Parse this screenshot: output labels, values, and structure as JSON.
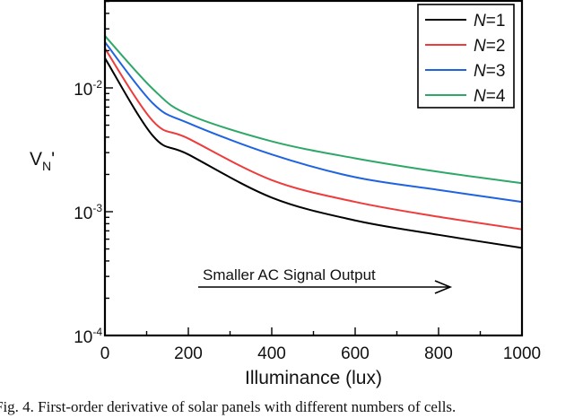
{
  "chart_data": {
    "type": "line",
    "title": "",
    "xlabel": "Illuminance (lux)",
    "ylabel": "V_N'",
    "ylabel_main": "V",
    "ylabel_sub": "N",
    "ylabel_suffix": "'",
    "xlim": [
      0,
      1000
    ],
    "ylim": [
      0.0001,
      0.05
    ],
    "yscale": "log",
    "x_ticks": [
      0,
      200,
      400,
      600,
      800,
      1000
    ],
    "y_ticks": [
      {
        "base": "10",
        "exp": "-2",
        "value": 0.01
      },
      {
        "base": "10",
        "exp": "-3",
        "value": 0.001
      },
      {
        "base": "10",
        "exp": "-4",
        "value": 0.0001
      }
    ],
    "grid": false,
    "legend_position": "upper right",
    "x": [
      0,
      115,
      200,
      400,
      600,
      800,
      1000
    ],
    "series": [
      {
        "name": "N=1",
        "label_italic": "N",
        "label_rest": "=1",
        "color": "#000000",
        "values": [
          0.0174,
          0.0041,
          0.0029,
          0.0013,
          0.00085,
          0.00065,
          0.00051
        ]
      },
      {
        "name": "N=2",
        "label_italic": "N",
        "label_rest": "=2",
        "color": "#ee3b3b",
        "values": [
          0.0208,
          0.0054,
          0.0039,
          0.0018,
          0.0012,
          0.00091,
          0.00072
        ]
      },
      {
        "name": "N=3",
        "label_italic": "N",
        "label_rest": "=3",
        "color": "#1f63e0",
        "values": [
          0.0234,
          0.0075,
          0.0052,
          0.0029,
          0.0019,
          0.0015,
          0.0012
        ]
      },
      {
        "name": "N=4",
        "label_italic": "N",
        "label_rest": "=4",
        "color": "#2ea868",
        "values": [
          0.0263,
          0.0098,
          0.0061,
          0.0037,
          0.0027,
          0.0021,
          0.0017
        ]
      }
    ],
    "annotations": [
      {
        "text": "Smaller AC Signal Output",
        "type": "arrow-right",
        "x_start": 225,
        "x_end": 840
      }
    ]
  },
  "caption": "Fig. 4.  First-order derivative of solar panels with different numbers of cells."
}
